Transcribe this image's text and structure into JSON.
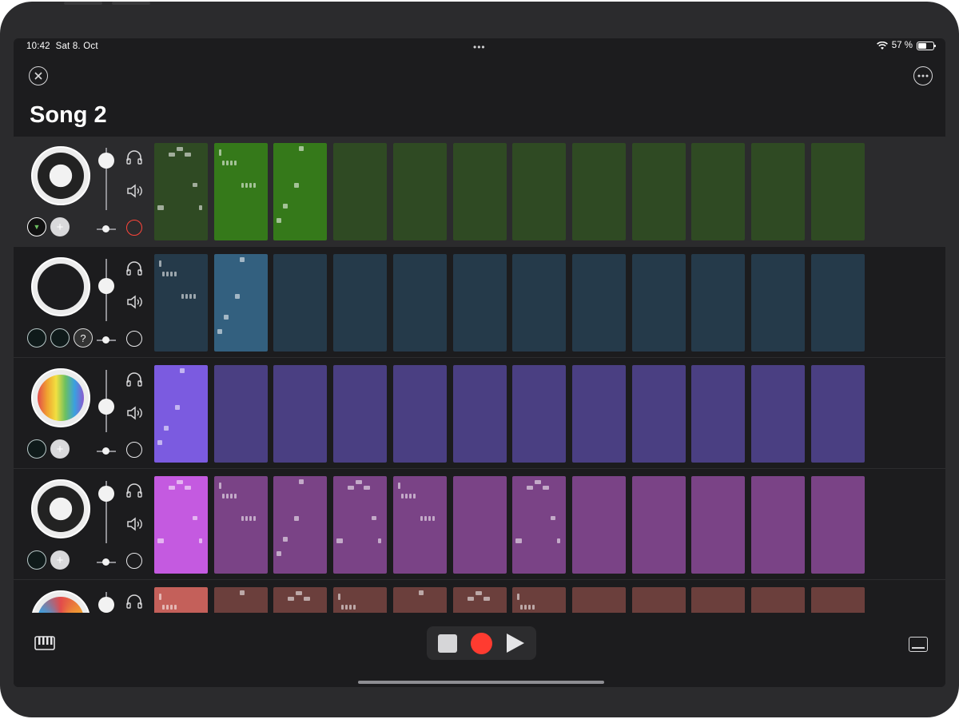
{
  "status_bar": {
    "time": "10:42",
    "date": "Sat 8. Oct",
    "battery": "57 %",
    "battery_level": 0.57
  },
  "header": {
    "title": "Song 2"
  },
  "colors": {
    "green_active": "#35791a",
    "green": "#2f4a23",
    "blue_active": "#33607f",
    "blue": "#253a4a",
    "purple_active": "#7b5be0",
    "purple": "#4a3f82",
    "magenta_active": "#c45ae0",
    "magenta": "#7a4386",
    "red_active": "#c4605a",
    "red": "#6b3f3c",
    "record": "#ff3b30"
  },
  "tracks": [
    {
      "name": "track-1",
      "icon": "synth-icon",
      "volume": 0.1,
      "armed": true,
      "buttons": [
        "filter-icon",
        "plus-icon"
      ],
      "cells": 12,
      "active_cells": [
        1,
        2
      ],
      "pattern_cells": [
        0,
        1,
        2
      ]
    },
    {
      "name": "track-2",
      "icon": "shield-icon",
      "volume": 0.42,
      "armed": false,
      "buttons": [
        "knob-icon",
        "knob-icon",
        "ear-icon"
      ],
      "cells": 12,
      "active_cells": [
        1
      ],
      "pattern_cells": [
        0,
        1
      ]
    },
    {
      "name": "track-3",
      "icon": "vhs-icon",
      "volume": 0.62,
      "armed": false,
      "buttons": [
        "knob-icon",
        "plus-icon"
      ],
      "cells": 12,
      "active_cells": [
        0
      ],
      "pattern_cells": [
        0
      ]
    },
    {
      "name": "track-4",
      "icon": "piano-icon",
      "volume": 0.1,
      "armed": false,
      "buttons": [
        "knob-icon",
        "plus-icon"
      ],
      "cells": 12,
      "active_cells": [
        0
      ],
      "pattern_cells": [
        0,
        1,
        2,
        3,
        4,
        6
      ]
    },
    {
      "name": "track-5",
      "icon": "rainbow-icon",
      "volume": 0.1,
      "armed": false,
      "buttons": [],
      "cells": 12,
      "active_cells": [
        0
      ],
      "pattern_cells": [
        0,
        1,
        2,
        3,
        4,
        5,
        6
      ]
    }
  ],
  "transport": {
    "stop": "stop-icon",
    "record": "record-icon",
    "play": "play-icon"
  },
  "bottom_bar": {
    "left": "keyboard-icon",
    "right": "panel-icon"
  }
}
